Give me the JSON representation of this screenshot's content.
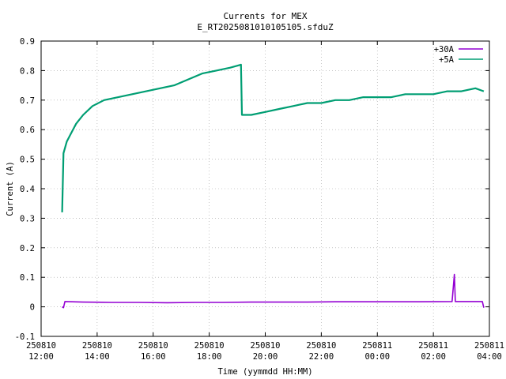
{
  "chart_data": {
    "type": "line",
    "title": "Currents for MEX",
    "subtitle": "E_RT2025081010105105.sfduZ",
    "xlabel": "Time (yymmdd HH:MM)",
    "ylabel": "Current (A)",
    "xlim": [
      "2025-08-10 12:00",
      "2025-08-11 04:00"
    ],
    "ylim": [
      -0.1,
      0.9
    ],
    "yticks": [
      -0.1,
      0,
      0.1,
      0.2,
      0.3,
      0.4,
      0.5,
      0.6,
      0.7,
      0.8,
      0.9
    ],
    "ytick_labels": [
      "-0.1",
      "0",
      "0.1",
      "0.2",
      "0.3",
      "0.4",
      "0.5",
      "0.6",
      "0.7",
      "0.8",
      "0.9"
    ],
    "xticks": [
      {
        "date": "250810",
        "time": "12:00"
      },
      {
        "date": "250810",
        "time": "14:00"
      },
      {
        "date": "250810",
        "time": "16:00"
      },
      {
        "date": "250810",
        "time": "18:00"
      },
      {
        "date": "250810",
        "time": "20:00"
      },
      {
        "date": "250810",
        "time": "22:00"
      },
      {
        "date": "250811",
        "time": "00:00"
      },
      {
        "date": "250811",
        "time": "02:00"
      },
      {
        "date": "250811",
        "time": "04:00"
      }
    ],
    "grid": true,
    "legend_position": "top-right",
    "series": [
      {
        "name": "+30A",
        "color": "#9400d3",
        "points": [
          [
            "2025-08-10 12:45",
            0.0
          ],
          [
            "2025-08-10 12:48",
            -0.003
          ],
          [
            "2025-08-10 12:51",
            0.018
          ],
          [
            "2025-08-10 13:30",
            0.016
          ],
          [
            "2025-08-10 14:30",
            0.015
          ],
          [
            "2025-08-10 15:30",
            0.015
          ],
          [
            "2025-08-10 16:30",
            0.014
          ],
          [
            "2025-08-10 17:30",
            0.015
          ],
          [
            "2025-08-10 18:30",
            0.015
          ],
          [
            "2025-08-10 19:30",
            0.016
          ],
          [
            "2025-08-10 20:30",
            0.016
          ],
          [
            "2025-08-10 21:30",
            0.016
          ],
          [
            "2025-08-10 22:30",
            0.017
          ],
          [
            "2025-08-10 23:30",
            0.017
          ],
          [
            "2025-08-11 00:30",
            0.017
          ],
          [
            "2025-08-11 01:30",
            0.017
          ],
          [
            "2025-08-11 02:40",
            0.018
          ],
          [
            "2025-08-11 02:45",
            0.11
          ],
          [
            "2025-08-11 02:47",
            0.018
          ],
          [
            "2025-08-11 03:45",
            0.018
          ],
          [
            "2025-08-11 03:48",
            -0.003
          ]
        ]
      },
      {
        "name": "+5A",
        "color": "#009e73",
        "points": [
          [
            "2025-08-10 12:45",
            0.32
          ],
          [
            "2025-08-10 12:48",
            0.52
          ],
          [
            "2025-08-10 12:55",
            0.56
          ],
          [
            "2025-08-10 13:05",
            0.59
          ],
          [
            "2025-08-10 13:15",
            0.62
          ],
          [
            "2025-08-10 13:30",
            0.65
          ],
          [
            "2025-08-10 13:50",
            0.68
          ],
          [
            "2025-08-10 14:15",
            0.7
          ],
          [
            "2025-08-10 14:45",
            0.71
          ],
          [
            "2025-08-10 15:15",
            0.72
          ],
          [
            "2025-08-10 15:45",
            0.73
          ],
          [
            "2025-08-10 16:15",
            0.74
          ],
          [
            "2025-08-10 16:45",
            0.75
          ],
          [
            "2025-08-10 17:15",
            0.77
          ],
          [
            "2025-08-10 17:45",
            0.79
          ],
          [
            "2025-08-10 18:15",
            0.8
          ],
          [
            "2025-08-10 18:45",
            0.81
          ],
          [
            "2025-08-10 19:08",
            0.82
          ],
          [
            "2025-08-10 19:10",
            0.65
          ],
          [
            "2025-08-10 19:30",
            0.65
          ],
          [
            "2025-08-10 20:00",
            0.66
          ],
          [
            "2025-08-10 20:30",
            0.67
          ],
          [
            "2025-08-10 21:00",
            0.68
          ],
          [
            "2025-08-10 21:30",
            0.69
          ],
          [
            "2025-08-10 22:00",
            0.69
          ],
          [
            "2025-08-10 22:30",
            0.7
          ],
          [
            "2025-08-10 23:00",
            0.7
          ],
          [
            "2025-08-10 23:30",
            0.71
          ],
          [
            "2025-08-11 00:00",
            0.71
          ],
          [
            "2025-08-11 00:30",
            0.71
          ],
          [
            "2025-08-11 01:00",
            0.72
          ],
          [
            "2025-08-11 01:30",
            0.72
          ],
          [
            "2025-08-11 02:00",
            0.72
          ],
          [
            "2025-08-11 02:30",
            0.73
          ],
          [
            "2025-08-11 03:00",
            0.73
          ],
          [
            "2025-08-11 03:30",
            0.74
          ],
          [
            "2025-08-11 03:48",
            0.73
          ]
        ]
      }
    ]
  }
}
